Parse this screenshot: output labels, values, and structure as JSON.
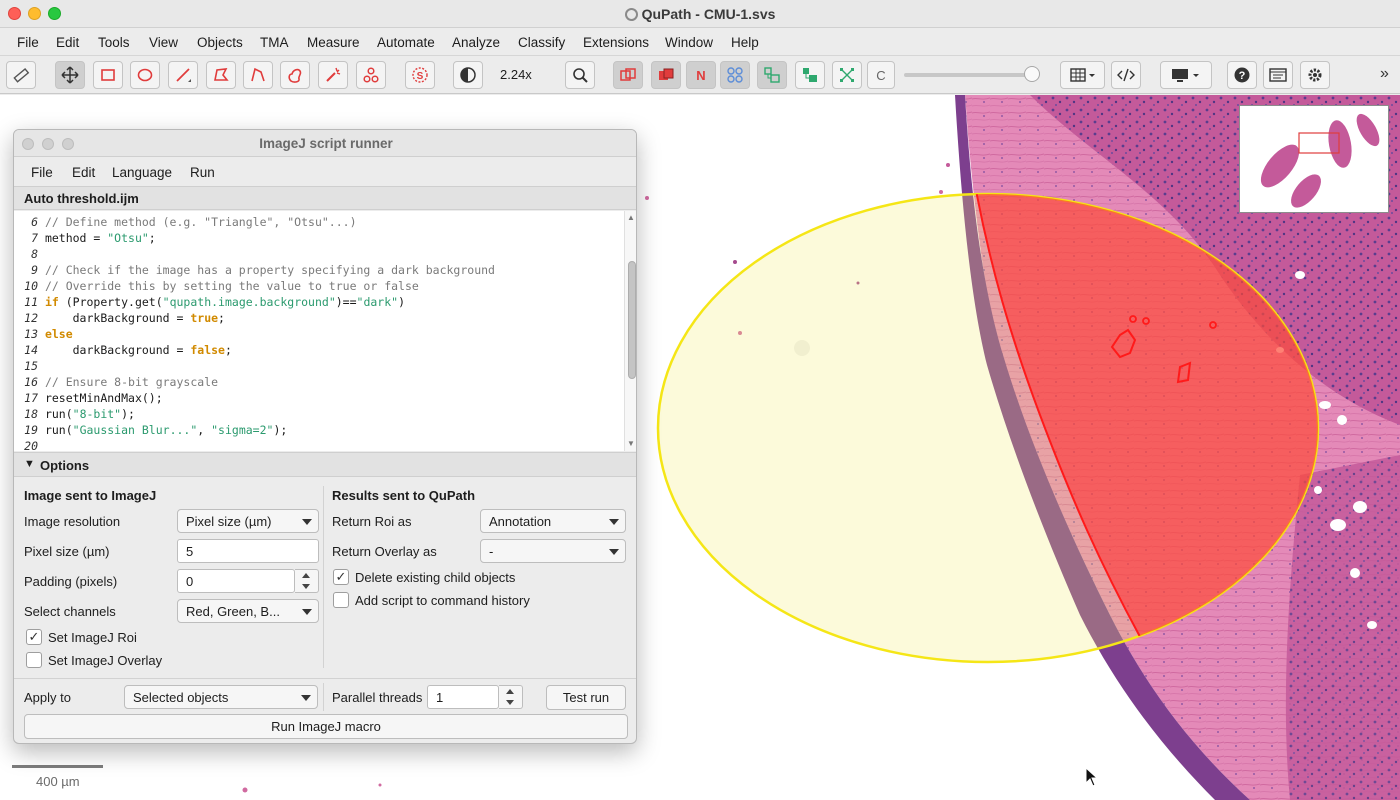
{
  "window": {
    "title": "QuPath - CMU-1.svs"
  },
  "menubar": [
    "File",
    "Edit",
    "Tools",
    "View",
    "Objects",
    "TMA",
    "Measure",
    "Automate",
    "Analyze",
    "Classify",
    "Extensions",
    "Window",
    "Help"
  ],
  "toolbar": {
    "zoom": "2.24x",
    "tool_glyphs": {
      "stardist": "S",
      "n_button": "N",
      "c_button": "C"
    },
    "icons": [
      "ruler-icon",
      "move-icon",
      "rectangle-icon",
      "ellipse-icon",
      "line-icon",
      "polygon-icon",
      "polyline-icon",
      "brush-icon",
      "wand-icon",
      "points-icon",
      "stardist-icon",
      "contrast-icon",
      "zoom-to-fit-icon",
      "show-annotations-icon",
      "fill-annotations-icon",
      "show-names-icon",
      "tma-grid-icon",
      "show-detections-icon",
      "fill-detections-icon",
      "pixel-classification-icon",
      "channels-icon",
      "measurement-table-icon",
      "script-editor-icon",
      "display-icon",
      "help-icon",
      "log-icon",
      "settings-icon",
      "overflow-icon"
    ],
    "colors": {
      "annotation_red": "#e03c3c",
      "detection_green": "#2ea86e",
      "grid_blue": "#5c8dd8"
    }
  },
  "viewer": {
    "scalebar": "400 µm",
    "colors": {
      "annotation": "#f5e616",
      "detection": "#ff3030",
      "tissue": "#c75a9c"
    }
  },
  "dialog": {
    "title": "ImageJ script runner",
    "menu": [
      "File",
      "Edit",
      "Language",
      "Run"
    ],
    "filename": "Auto threshold.ijm",
    "code_lines": [
      {
        "n": "6",
        "segs": [
          {
            "t": "// Define method (e.g. \"Triangle\", \"Otsu\"...)",
            "c": "cm"
          }
        ]
      },
      {
        "n": "7",
        "segs": [
          {
            "t": "method = ",
            "c": "tx"
          },
          {
            "t": "\"Otsu\"",
            "c": "str"
          },
          {
            "t": ";",
            "c": "tx"
          }
        ]
      },
      {
        "n": "8",
        "segs": []
      },
      {
        "n": "9",
        "segs": [
          {
            "t": "// Check if the image has a property specifying a dark background",
            "c": "cm"
          }
        ]
      },
      {
        "n": "10",
        "segs": [
          {
            "t": "// Override this by setting the value to true or false",
            "c": "cm"
          }
        ]
      },
      {
        "n": "11",
        "segs": [
          {
            "t": "if",
            "c": "kw"
          },
          {
            "t": " (Property.get(",
            "c": "tx"
          },
          {
            "t": "\"qupath.image.background\"",
            "c": "str"
          },
          {
            "t": ")==",
            "c": "tx"
          },
          {
            "t": "\"dark\"",
            "c": "str"
          },
          {
            "t": ")",
            "c": "tx"
          }
        ]
      },
      {
        "n": "12",
        "segs": [
          {
            "t": "    darkBackground = ",
            "c": "tx"
          },
          {
            "t": "true",
            "c": "kw"
          },
          {
            "t": ";",
            "c": "tx"
          }
        ]
      },
      {
        "n": "13",
        "segs": [
          {
            "t": "else",
            "c": "kw"
          }
        ]
      },
      {
        "n": "14",
        "segs": [
          {
            "t": "    darkBackground = ",
            "c": "tx"
          },
          {
            "t": "false",
            "c": "kw"
          },
          {
            "t": ";",
            "c": "tx"
          }
        ]
      },
      {
        "n": "15",
        "segs": []
      },
      {
        "n": "16",
        "segs": [
          {
            "t": "// Ensure 8-bit grayscale",
            "c": "cm"
          }
        ]
      },
      {
        "n": "17",
        "segs": [
          {
            "t": "resetMinAndMax();",
            "c": "tx"
          }
        ]
      },
      {
        "n": "18",
        "segs": [
          {
            "t": "run(",
            "c": "tx"
          },
          {
            "t": "\"8-bit\"",
            "c": "str"
          },
          {
            "t": ");",
            "c": "tx"
          }
        ]
      },
      {
        "n": "19",
        "segs": [
          {
            "t": "run(",
            "c": "tx"
          },
          {
            "t": "\"Gaussian Blur...\"",
            "c": "str"
          },
          {
            "t": ", ",
            "c": "tx"
          },
          {
            "t": "\"sigma=2\"",
            "c": "str"
          },
          {
            "t": ");",
            "c": "tx"
          }
        ]
      },
      {
        "n": "20",
        "segs": []
      }
    ],
    "options": {
      "header": "Options",
      "left_title": "Image sent to ImageJ",
      "right_title": "Results sent to QuPath",
      "image_resolution": {
        "label": "Image resolution",
        "value": "Pixel size (µm)"
      },
      "pixel_size": {
        "label": "Pixel size (µm)",
        "value": "5"
      },
      "padding": {
        "label": "Padding (pixels)",
        "value": "0"
      },
      "select_channels": {
        "label": "Select channels",
        "value": "Red, Green, B..."
      },
      "set_imagej_roi": {
        "label": "Set ImageJ Roi",
        "checked": true
      },
      "set_imagej_overlay": {
        "label": "Set ImageJ Overlay",
        "checked": false
      },
      "return_roi": {
        "label": "Return Roi as",
        "value": "Annotation"
      },
      "return_overlay": {
        "label": "Return Overlay as",
        "value": "-"
      },
      "delete_children": {
        "label": "Delete existing child objects",
        "checked": true
      },
      "add_history": {
        "label": "Add script to command history",
        "checked": false
      }
    },
    "footer": {
      "apply_to_label": "Apply to",
      "apply_to_value": "Selected objects",
      "threads_label": "Parallel threads",
      "threads_value": "1",
      "test_run": "Test run",
      "run_macro": "Run ImageJ macro"
    }
  }
}
